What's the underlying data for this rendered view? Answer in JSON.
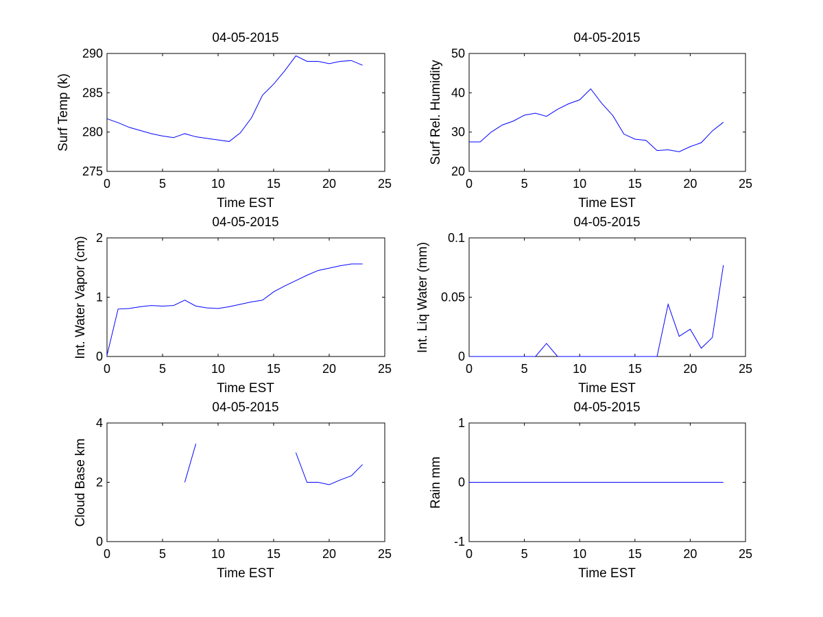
{
  "colors": {
    "line": "#0000ff",
    "axis": "#000000",
    "background": "#ffffff"
  },
  "chart_data": [
    {
      "type": "line",
      "title": "04-05-2015",
      "xlabel": "Time EST",
      "ylabel": "Surf Temp (k)",
      "xlim": [
        0,
        25
      ],
      "ylim": [
        275,
        290
      ],
      "xticks": [
        "0",
        "5",
        "10",
        "15",
        "20",
        "25"
      ],
      "yticks": [
        "275",
        "280",
        "285",
        "290"
      ],
      "ytick_values": [
        275,
        280,
        285,
        290
      ],
      "x": [
        0,
        1,
        2,
        3,
        4,
        5,
        6,
        7,
        8,
        9,
        10,
        11,
        12,
        13,
        14,
        15,
        16,
        17,
        18,
        19,
        20,
        21,
        22,
        23
      ],
      "series": [
        {
          "name": "Surf Temp",
          "values": [
            281.7,
            281.2,
            280.6,
            280.2,
            279.8,
            279.5,
            279.3,
            279.8,
            279.4,
            279.2,
            279.0,
            278.8,
            279.9,
            281.8,
            284.7,
            286.1,
            287.8,
            289.7,
            289.0,
            289.0,
            288.7,
            289.0,
            289.1,
            288.5
          ]
        }
      ]
    },
    {
      "type": "line",
      "title": "04-05-2015",
      "xlabel": "Time EST",
      "ylabel": "Surf Rel. Humidity",
      "xlim": [
        0,
        25
      ],
      "ylim": [
        20,
        50
      ],
      "xticks": [
        "0",
        "5",
        "10",
        "15",
        "20",
        "25"
      ],
      "yticks": [
        "20",
        "30",
        "40",
        "50"
      ],
      "ytick_values": [
        20,
        30,
        40,
        50
      ],
      "x": [
        0,
        1,
        2,
        3,
        4,
        5,
        6,
        7,
        8,
        9,
        10,
        11,
        12,
        13,
        14,
        15,
        16,
        17,
        18,
        19,
        20,
        21,
        22,
        23
      ],
      "series": [
        {
          "name": "Surf Rel. Humidity",
          "values": [
            27.5,
            27.5,
            30.0,
            31.8,
            32.8,
            34.3,
            34.8,
            34.0,
            35.8,
            37.2,
            38.2,
            41.0,
            37.3,
            34.2,
            29.5,
            28.2,
            27.9,
            25.3,
            25.5,
            25.0,
            26.3,
            27.3,
            30.3,
            32.5
          ]
        }
      ]
    },
    {
      "type": "line",
      "title": "04-05-2015",
      "xlabel": "Time EST",
      "ylabel": "Int. Water Vapor (cm)",
      "xlim": [
        0,
        25
      ],
      "ylim": [
        0,
        2
      ],
      "xticks": [
        "0",
        "5",
        "10",
        "15",
        "20",
        "25"
      ],
      "yticks": [
        "0",
        "1",
        "2"
      ],
      "ytick_values": [
        0,
        1,
        2
      ],
      "x": [
        0,
        1,
        2,
        3,
        4,
        5,
        6,
        7,
        8,
        9,
        10,
        11,
        12,
        13,
        14,
        15,
        16,
        17,
        18,
        19,
        20,
        21,
        22,
        23
      ],
      "series": [
        {
          "name": "Int. Water Vapor",
          "values": [
            0.02,
            0.8,
            0.81,
            0.84,
            0.86,
            0.85,
            0.86,
            0.95,
            0.85,
            0.82,
            0.81,
            0.84,
            0.88,
            0.92,
            0.95,
            1.09,
            1.19,
            1.28,
            1.37,
            1.45,
            1.49,
            1.53,
            1.56,
            1.56
          ]
        }
      ]
    },
    {
      "type": "line",
      "title": "04-05-2015",
      "xlabel": "Time EST",
      "ylabel": "Int. Liq Water (mm)",
      "xlim": [
        0,
        25
      ],
      "ylim": [
        0,
        0.1
      ],
      "xticks": [
        "0",
        "5",
        "10",
        "15",
        "20",
        "25"
      ],
      "yticks": [
        "0",
        "0.05",
        "0.1"
      ],
      "ytick_values": [
        0,
        0.05,
        0.1
      ],
      "x": [
        0,
        1,
        2,
        3,
        4,
        5,
        6,
        7,
        8,
        9,
        10,
        11,
        12,
        13,
        14,
        15,
        16,
        17,
        18,
        19,
        20,
        21,
        22,
        23
      ],
      "series": [
        {
          "name": "Int. Liq Water",
          "values": [
            0,
            0,
            0,
            0,
            0,
            0,
            0,
            0.011,
            0,
            0,
            0,
            0,
            0,
            0,
            0,
            0,
            0,
            0,
            0.044,
            0.017,
            0.023,
            0.007,
            0.016,
            0.077
          ]
        }
      ]
    },
    {
      "type": "line",
      "title": "04-05-2015",
      "xlabel": "Time EST",
      "ylabel": "Cloud Base km",
      "xlim": [
        0,
        25
      ],
      "ylim": [
        0,
        4
      ],
      "xticks": [
        "0",
        "5",
        "10",
        "15",
        "20",
        "25"
      ],
      "yticks": [
        "0",
        "2",
        "4"
      ],
      "ytick_values": [
        0,
        2,
        4
      ],
      "x": [
        0,
        1,
        2,
        3,
        4,
        5,
        6,
        7,
        8,
        9,
        10,
        11,
        12,
        13,
        14,
        15,
        16,
        17,
        18,
        19,
        20,
        21,
        22,
        23
      ],
      "series": [
        {
          "name": "Cloud Base",
          "values": [
            null,
            null,
            null,
            null,
            null,
            null,
            null,
            2.0,
            3.3,
            null,
            null,
            null,
            null,
            null,
            null,
            null,
            null,
            3.0,
            2.0,
            2.0,
            1.92,
            2.08,
            2.22,
            2.6
          ]
        }
      ]
    },
    {
      "type": "line",
      "title": "04-05-2015",
      "xlabel": "Time EST",
      "ylabel": "Rain mm",
      "xlim": [
        0,
        25
      ],
      "ylim": [
        -1,
        1
      ],
      "xticks": [
        "0",
        "5",
        "10",
        "15",
        "20",
        "25"
      ],
      "yticks": [
        "-1",
        "0",
        "1"
      ],
      "ytick_values": [
        -1,
        0,
        1
      ],
      "x": [
        0,
        1,
        2,
        3,
        4,
        5,
        6,
        7,
        8,
        9,
        10,
        11,
        12,
        13,
        14,
        15,
        16,
        17,
        18,
        19,
        20,
        21,
        22,
        23
      ],
      "series": [
        {
          "name": "Rain",
          "values": [
            0,
            0,
            0,
            0,
            0,
            0,
            0,
            0,
            0,
            0,
            0,
            0,
            0,
            0,
            0,
            0,
            0,
            0,
            0,
            0,
            0,
            0,
            0,
            0
          ]
        }
      ]
    }
  ]
}
